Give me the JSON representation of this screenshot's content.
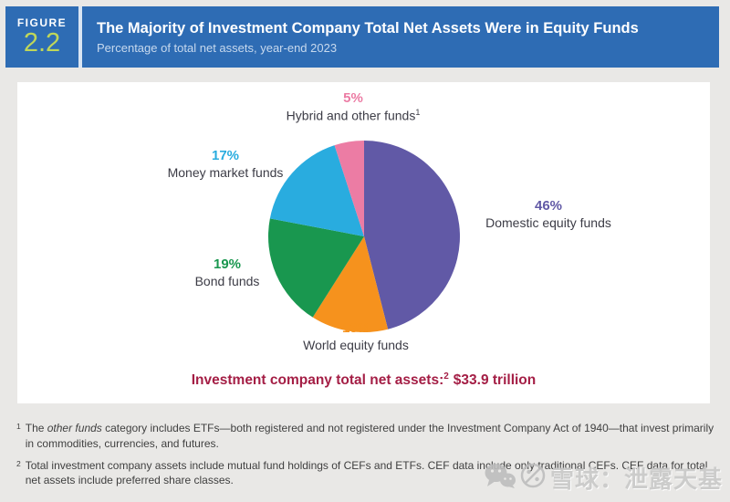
{
  "header": {
    "figure_label": "FIGURE",
    "figure_number": "2.2",
    "title": "The Majority of Investment Company Total Net Assets Were in Equity Funds",
    "subtitle": "Percentage of total net assets, year-end 2023"
  },
  "chart_data": {
    "type": "pie",
    "title": "Percentage of total net assets, year-end 2023",
    "start_angle_deg": 0,
    "direction": "clockwise",
    "legend_position": "around-slices",
    "slices": [
      {
        "label": "Domestic equity funds",
        "value": 46,
        "pct_label": "46%",
        "color": "#6159a6"
      },
      {
        "label": "World equity funds",
        "value": 13,
        "pct_label": "13%",
        "color": "#f6921d"
      },
      {
        "label": "Bond funds",
        "value": 19,
        "pct_label": "19%",
        "color": "#19974f"
      },
      {
        "label": "Money market funds",
        "value": 17,
        "pct_label": "17%",
        "color": "#29acdf"
      },
      {
        "label": "Hybrid and other funds",
        "value": 5,
        "pct_label": "5%",
        "color": "#ec7ca4",
        "footnote_ref": "1"
      }
    ]
  },
  "total_line": {
    "prefix": "Investment company total net assets:",
    "footnote_ref": "2",
    "amount": "$33.9 trillion"
  },
  "footnotes": [
    {
      "marker": "1",
      "part1": "The ",
      "italic": "other funds",
      "part2": " category includes ETFs—both registered and not registered under the Investment Company Act of 1940—that invest primarily in commodities, currencies, and futures."
    },
    {
      "marker": "2",
      "text": "Total investment company assets include mutual fund holdings of CEFs and ETFs. CEF data include only traditional CEFs. CEF data for total net assets include preferred share classes."
    }
  ],
  "watermark": {
    "text": "雪球：泄露天基",
    "icons": [
      "wechat-icon",
      "crossed-circle-icon"
    ],
    "color": "#c9c9c9"
  },
  "colors": {
    "header_bg": "#2e6cb4",
    "figure_number": "#bfd65a",
    "subtitle": "#c7d9ee",
    "total_text": "#a41e45",
    "page_bg": "#e9e8e6",
    "panel_bg": "#ffffff",
    "footnote_text": "#404040"
  }
}
